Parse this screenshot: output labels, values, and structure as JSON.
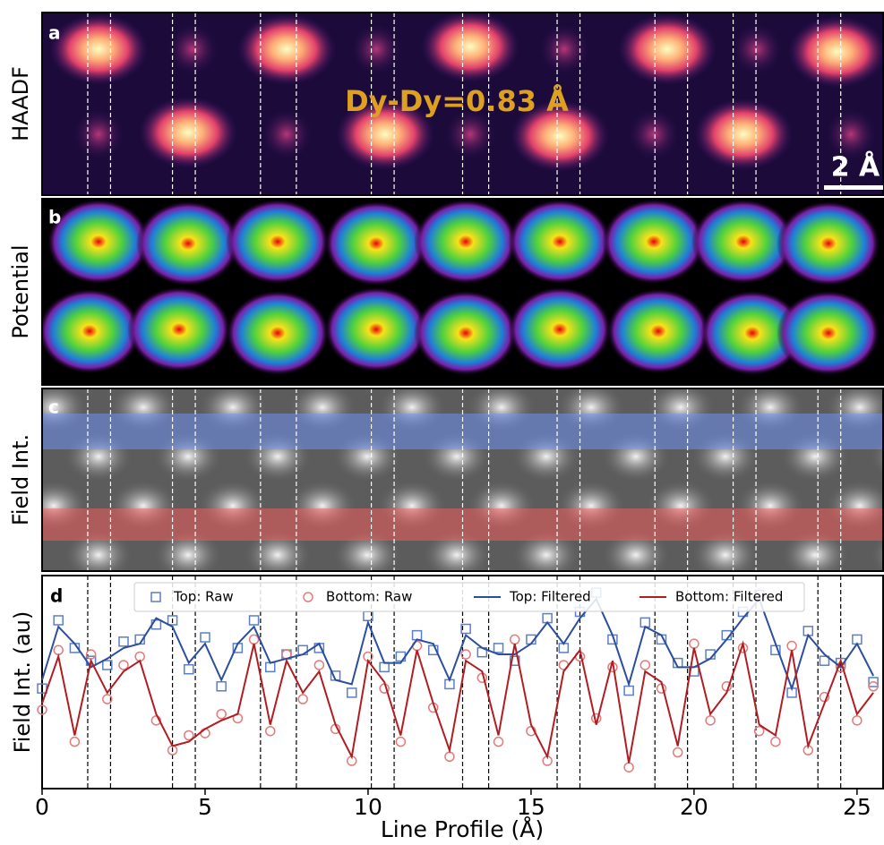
{
  "panels": [
    {
      "label": "a",
      "ylabel": "HAADF",
      "annotation": "Dy-Dy=0.83 Å",
      "scale_bar": "2 Å"
    },
    {
      "label": "b",
      "ylabel": "Potential"
    },
    {
      "label": "c",
      "ylabel": "Field Int."
    }
  ],
  "chart_data": {
    "type": "line",
    "panel_label": "d",
    "ylabel": "Field Int. (au)",
    "xlabel": "Line Profile (Å)",
    "xlim": [
      0,
      25.8
    ],
    "xticks": [
      0,
      5,
      10,
      15,
      20,
      25
    ],
    "ylim": [
      0,
      1
    ],
    "legend": "upper center",
    "vlines": [
      1.4,
      2.1,
      4.0,
      4.7,
      6.7,
      7.8,
      10.1,
      10.8,
      12.9,
      13.7,
      15.8,
      16.5,
      18.8,
      19.8,
      21.2,
      21.9,
      23.8,
      24.5
    ],
    "x": [
      0,
      0.5,
      1,
      1.5,
      2,
      2.5,
      3,
      3.5,
      4,
      4.5,
      5,
      5.5,
      6,
      6.5,
      7,
      7.5,
      8,
      8.5,
      9,
      9.5,
      10,
      10.5,
      11,
      11.5,
      12,
      12.5,
      13,
      13.5,
      14,
      14.5,
      15,
      15.5,
      16,
      16.5,
      17,
      17.5,
      18,
      18.5,
      19,
      19.5,
      20,
      20.5,
      21,
      21.5,
      22,
      22.5,
      23,
      23.5,
      24,
      24.5,
      25,
      25.5
    ],
    "series": [
      {
        "name": "Top: Raw",
        "color": "#5b7fc7",
        "style": "markers",
        "marker": "square",
        "values": [
          0.47,
          0.79,
          0.66,
          0.6,
          0.58,
          0.69,
          0.7,
          0.77,
          0.79,
          0.56,
          0.71,
          0.48,
          0.66,
          0.79,
          0.57,
          0.63,
          0.65,
          0.66,
          0.53,
          0.45,
          0.81,
          0.57,
          0.62,
          0.72,
          0.65,
          0.49,
          0.75,
          0.64,
          0.66,
          0.6,
          0.7,
          0.8,
          0.66,
          0.83,
          0.92,
          0.7,
          0.46,
          0.78,
          0.7,
          0.59,
          0.55,
          0.63,
          0.72,
          0.83,
          0.91,
          0.65,
          0.45,
          0.74,
          0.6,
          0.59,
          0.7,
          0.5
        ]
      },
      {
        "name": "Bottom: Raw",
        "color": "#e57a7a",
        "style": "markers",
        "marker": "circle",
        "values": [
          0.37,
          0.65,
          0.22,
          0.63,
          0.42,
          0.58,
          0.62,
          0.32,
          0.18,
          0.25,
          0.26,
          0.35,
          0.33,
          0.7,
          0.27,
          0.63,
          0.42,
          0.58,
          0.28,
          0.13,
          0.62,
          0.47,
          0.22,
          0.67,
          0.38,
          0.15,
          0.63,
          0.52,
          0.22,
          0.7,
          0.27,
          0.13,
          0.58,
          0.62,
          0.33,
          0.57,
          0.1,
          0.58,
          0.47,
          0.17,
          0.68,
          0.32,
          0.48,
          0.66,
          0.27,
          0.22,
          0.67,
          0.18,
          0.43,
          0.57,
          0.32,
          0.48
        ]
      },
      {
        "name": "Top: Filtered",
        "color": "#2b4e9e",
        "style": "line",
        "values": [
          0.51,
          0.76,
          0.68,
          0.57,
          0.61,
          0.66,
          0.68,
          0.8,
          0.76,
          0.59,
          0.68,
          0.51,
          0.68,
          0.76,
          0.59,
          0.61,
          0.63,
          0.68,
          0.51,
          0.49,
          0.78,
          0.59,
          0.59,
          0.7,
          0.68,
          0.51,
          0.72,
          0.66,
          0.63,
          0.63,
          0.68,
          0.78,
          0.68,
          0.8,
          0.89,
          0.72,
          0.49,
          0.76,
          0.72,
          0.57,
          0.57,
          0.61,
          0.7,
          0.8,
          0.89,
          0.68,
          0.47,
          0.72,
          0.63,
          0.57,
          0.68,
          0.53
        ]
      },
      {
        "name": "Bottom: Filtered",
        "color": "#b01e23",
        "style": "line",
        "values": [
          0.4,
          0.62,
          0.25,
          0.6,
          0.45,
          0.55,
          0.6,
          0.35,
          0.2,
          0.22,
          0.28,
          0.32,
          0.35,
          0.68,
          0.3,
          0.6,
          0.45,
          0.55,
          0.3,
          0.15,
          0.6,
          0.5,
          0.25,
          0.65,
          0.4,
          0.18,
          0.6,
          0.55,
          0.25,
          0.68,
          0.3,
          0.15,
          0.55,
          0.65,
          0.3,
          0.6,
          0.12,
          0.55,
          0.5,
          0.2,
          0.66,
          0.35,
          0.45,
          0.68,
          0.3,
          0.25,
          0.65,
          0.2,
          0.4,
          0.6,
          0.35,
          0.45
        ]
      }
    ]
  }
}
